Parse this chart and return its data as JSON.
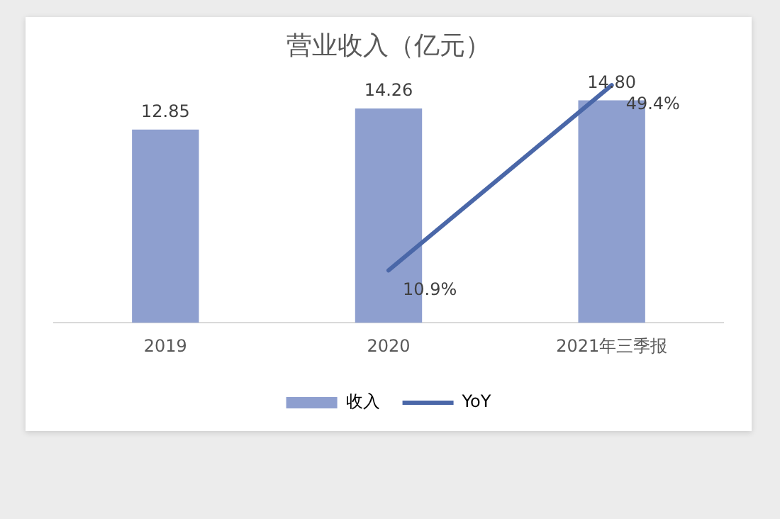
{
  "chart_data": {
    "type": "bar",
    "title": "营业收入（亿元）",
    "categories": [
      "2019",
      "2020",
      "2021年三季报"
    ],
    "series": [
      {
        "name": "收入",
        "color": "#8e9fcf",
        "values": [
          12.85,
          14.26,
          14.8
        ],
        "value_labels": [
          "12.85",
          "14.26",
          "14.80"
        ]
      },
      {
        "name": "YoY",
        "type": "line",
        "axis": "y2",
        "color": "#4a67a8",
        "values": [
          null,
          10.9,
          49.4
        ],
        "value_labels": [
          null,
          "10.9%",
          "49.4%"
        ]
      }
    ],
    "grid": false,
    "legend": "bottom",
    "tick_labels": "x",
    "marker": "none",
    "line_style": "solid"
  }
}
